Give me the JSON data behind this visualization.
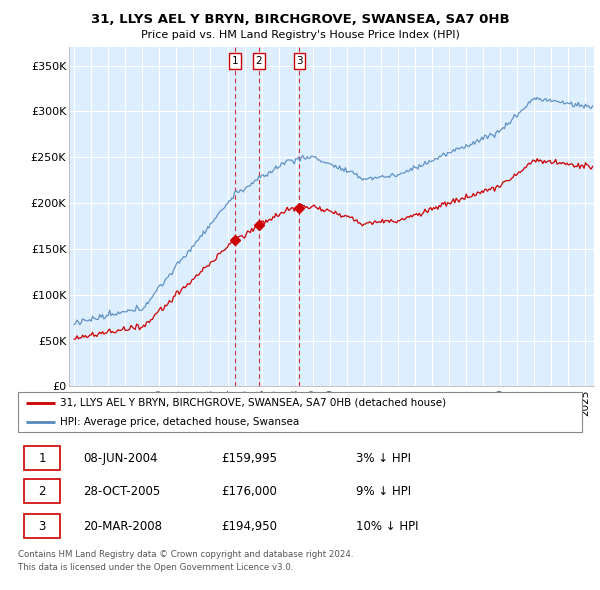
{
  "title": "31, LLYS AEL Y BRYN, BIRCHGROVE, SWANSEA, SA7 0HB",
  "subtitle": "Price paid vs. HM Land Registry's House Price Index (HPI)",
  "ylabel_ticks": [
    "£0",
    "£50K",
    "£100K",
    "£150K",
    "£200K",
    "£250K",
    "£300K",
    "£350K"
  ],
  "ytick_values": [
    0,
    50000,
    100000,
    150000,
    200000,
    250000,
    300000,
    350000
  ],
  "ylim": [
    0,
    370000
  ],
  "transactions": [
    {
      "num": 1,
      "date": "08-JUN-2004",
      "price": 159995,
      "pct": "3%",
      "year": 2004.44
    },
    {
      "num": 2,
      "date": "28-OCT-2005",
      "price": 176000,
      "pct": "9%",
      "year": 2005.83
    },
    {
      "num": 3,
      "date": "20-MAR-2008",
      "price": 194950,
      "pct": "10%",
      "year": 2008.22
    }
  ],
  "legend_line1": "31, LLYS AEL Y BRYN, BIRCHGROVE, SWANSEA, SA7 0HB (detached house)",
  "legend_line2": "HPI: Average price, detached house, Swansea",
  "footer1": "Contains HM Land Registry data © Crown copyright and database right 2024.",
  "footer2": "This data is licensed under the Open Government Licence v3.0.",
  "property_color": "#cc0000",
  "hpi_color": "#5588bb",
  "bg_fill_color": "#ddeeff",
  "table_rows": [
    {
      "num": "1",
      "date": "08-JUN-2004",
      "price": "£159,995",
      "pct": "3% ↓ HPI"
    },
    {
      "num": "2",
      "date": "28-OCT-2005",
      "price": "£176,000",
      "pct": "9% ↓ HPI"
    },
    {
      "num": "3",
      "date": "20-MAR-2008",
      "price": "£194,950",
      "pct": "10% ↓ HPI"
    }
  ]
}
